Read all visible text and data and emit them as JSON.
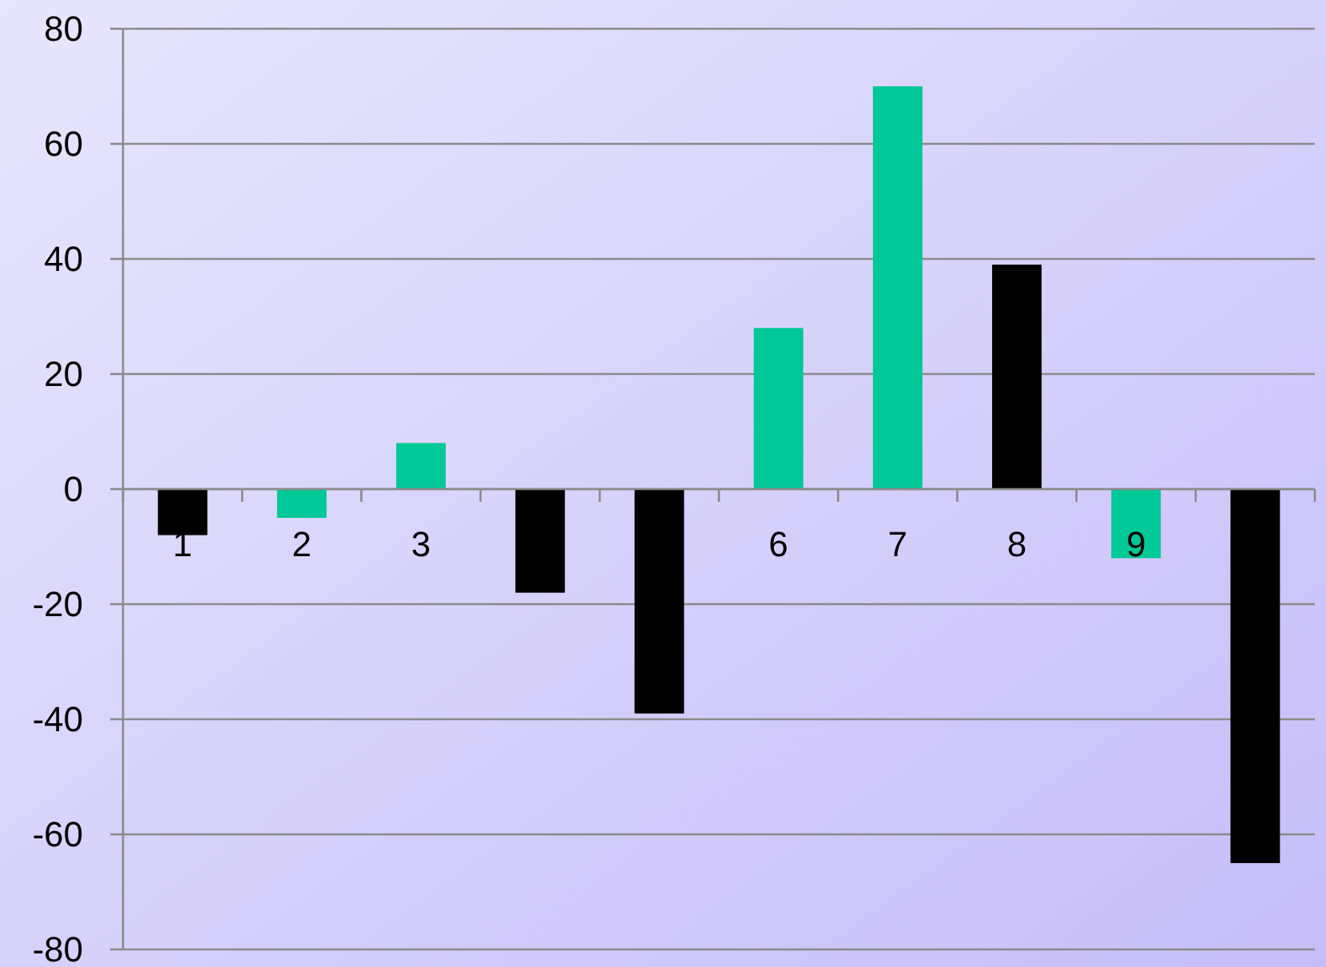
{
  "chart_data": {
    "type": "bar",
    "categories": [
      "1",
      "2",
      "3",
      null,
      null,
      "6",
      "7",
      "8",
      "9",
      null
    ],
    "values": [
      -8,
      -5,
      8,
      -18,
      -39,
      28,
      70,
      39,
      -12,
      -65
    ],
    "colors": [
      "#000000",
      "#00c896",
      "#00c896",
      "#000000",
      "#000000",
      "#00c896",
      "#00c896",
      "#000000",
      "#00c896",
      "#000000"
    ],
    "ylim": [
      -80,
      80
    ],
    "yticks": [
      -80,
      -60,
      -40,
      -20,
      0,
      20,
      40,
      60,
      80
    ],
    "grid": "y"
  }
}
